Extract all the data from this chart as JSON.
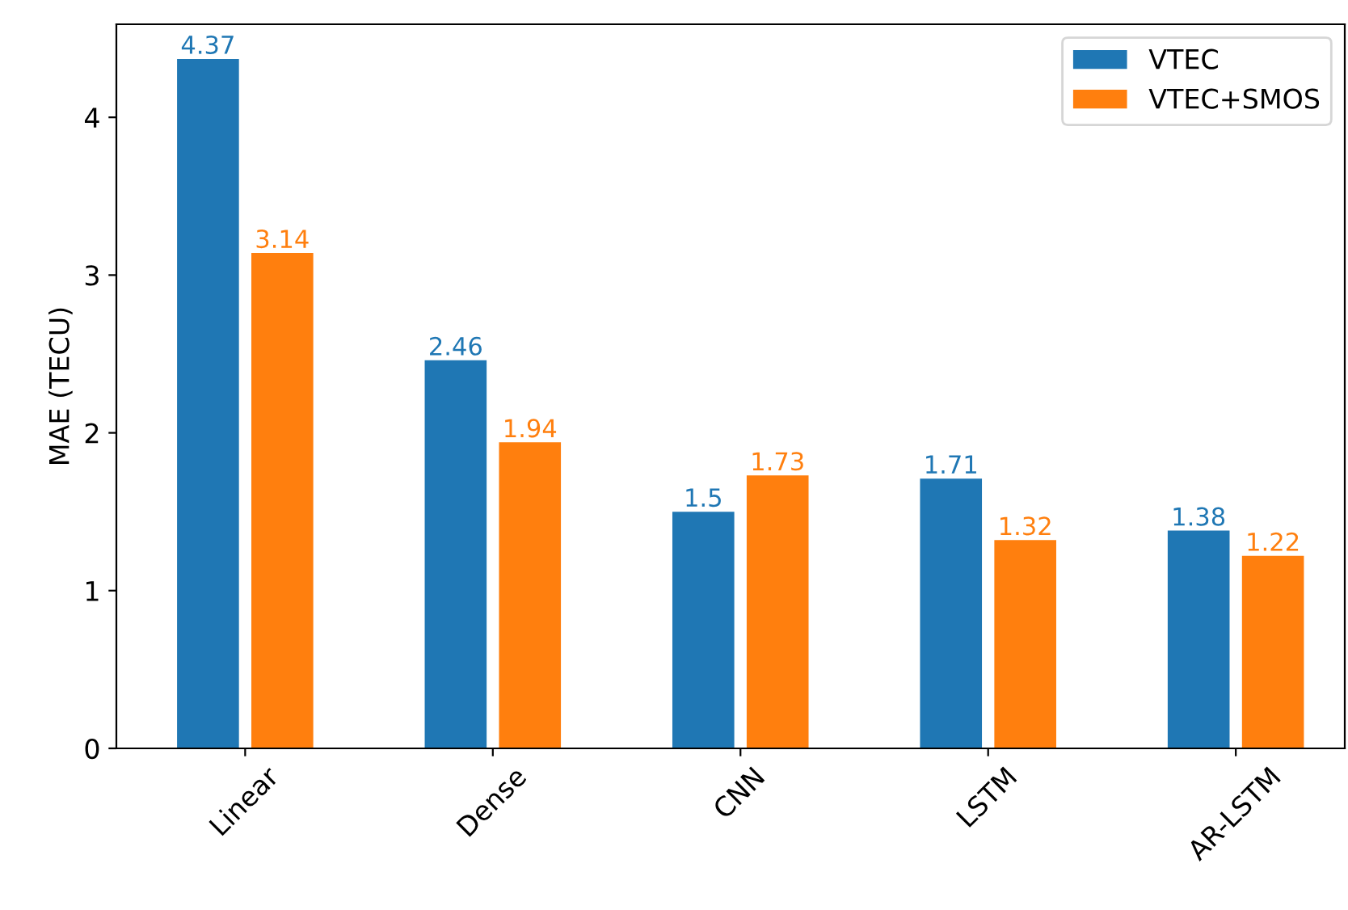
{
  "chart_data": {
    "type": "bar",
    "ylabel": "MAE (TECU)",
    "categories": [
      "Linear",
      "Dense",
      "CNN",
      "LSTM",
      "AR-LSTM"
    ],
    "series": [
      {
        "name": "VTEC",
        "color": "#1f77b4",
        "values": [
          4.37,
          2.46,
          1.5,
          1.71,
          1.38
        ]
      },
      {
        "name": "VTEC+SMOS",
        "color": "#ff7f0e",
        "values": [
          3.14,
          1.94,
          1.73,
          1.32,
          1.22
        ]
      }
    ],
    "ylim": [
      0,
      4.59
    ],
    "yticks": [
      0,
      1,
      2,
      3,
      4
    ],
    "data_labels": true,
    "legend": "top right",
    "grid": false
  }
}
